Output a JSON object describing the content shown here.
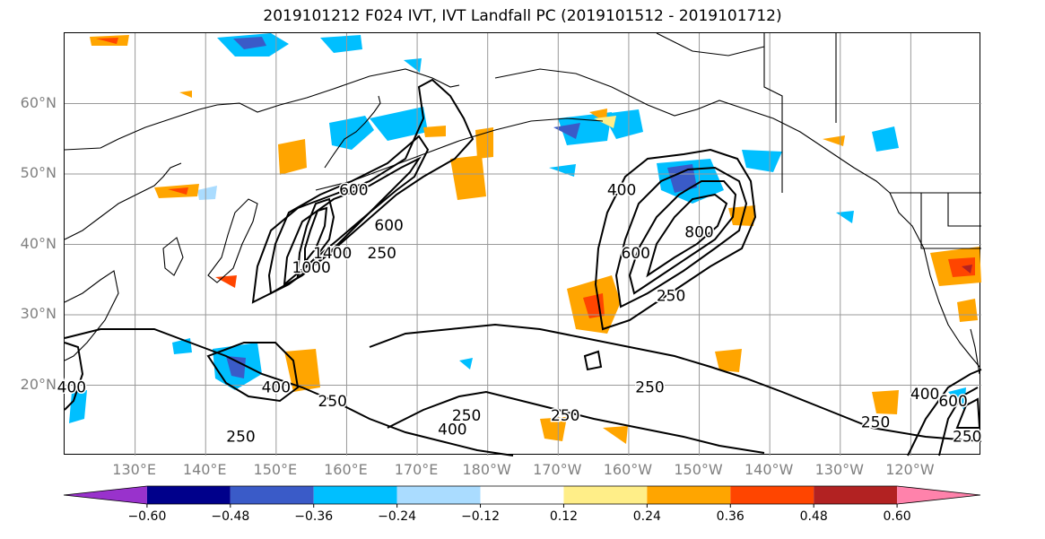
{
  "title": "2019101212 F024 IVT, IVT Landfall PC (2019101512 - 2019101712)",
  "lat_ticks": [
    {
      "label": "60°N",
      "lat": 60
    },
    {
      "label": "50°N",
      "lat": 50
    },
    {
      "label": "40°N",
      "lat": 40
    },
    {
      "label": "30°N",
      "lat": 30
    },
    {
      "label": "20°N",
      "lat": 20
    }
  ],
  "lon_ticks": [
    {
      "label": "130°E",
      "lon": 130
    },
    {
      "label": "140°E",
      "lon": 140
    },
    {
      "label": "150°E",
      "lon": 150
    },
    {
      "label": "160°E",
      "lon": 160
    },
    {
      "label": "170°E",
      "lon": 170
    },
    {
      "label": "180°W",
      "lon": 180
    },
    {
      "label": "170°W",
      "lon": 190
    },
    {
      "label": "160°W",
      "lon": 200
    },
    {
      "label": "150°W",
      "lon": 210
    },
    {
      "label": "140°W",
      "lon": 220
    },
    {
      "label": "130°W",
      "lon": 230
    },
    {
      "label": "120°W",
      "lon": 240
    }
  ],
  "map_extent": {
    "lon_min": 120,
    "lon_max": 250,
    "lat_min": 10,
    "lat_max": 70
  },
  "contour_labels": [
    {
      "text": "600",
      "lon": 161,
      "lat": 47
    },
    {
      "text": "600",
      "lon": 166,
      "lat": 42
    },
    {
      "text": "250",
      "lon": 165,
      "lat": 38
    },
    {
      "text": "1000",
      "lon": 155,
      "lat": 36
    },
    {
      "text": "1400",
      "lon": 158,
      "lat": 38
    },
    {
      "text": "400",
      "lon": 199,
      "lat": 47
    },
    {
      "text": "600",
      "lon": 201,
      "lat": 38
    },
    {
      "text": "800",
      "lon": 210,
      "lat": 41
    },
    {
      "text": "250",
      "lon": 206,
      "lat": 32
    },
    {
      "text": "400",
      "lon": 150,
      "lat": 19
    },
    {
      "text": "250",
      "lon": 158,
      "lat": 17
    },
    {
      "text": "250",
      "lon": 145,
      "lat": 12
    },
    {
      "text": "250",
      "lon": 177,
      "lat": 15
    },
    {
      "text": "400",
      "lon": 175,
      "lat": 13
    },
    {
      "text": "250",
      "lon": 191,
      "lat": 15
    },
    {
      "text": "250",
      "lon": 203,
      "lat": 19
    },
    {
      "text": "250",
      "lon": 235,
      "lat": 14
    },
    {
      "text": "400",
      "lon": 242,
      "lat": 18
    },
    {
      "text": "600",
      "lon": 246,
      "lat": 17
    },
    {
      "text": "250",
      "lon": 248,
      "lat": 12
    },
    {
      "text": "400",
      "lon": 121,
      "lat": 19
    }
  ],
  "colorbar": {
    "colors": [
      "#9932cc",
      "#00008b",
      "#3a5bc8",
      "#00bfff",
      "#aadcff",
      "#ffffff",
      "#ffee88",
      "#ffa500",
      "#ff4500",
      "#b22222",
      "#ff82ab"
    ],
    "tick_labels": [
      "-0.60",
      "-0.48",
      "-0.36",
      "-0.24",
      "-0.12",
      "0.12",
      "0.24",
      "0.36",
      "0.48",
      "0.60"
    ]
  }
}
